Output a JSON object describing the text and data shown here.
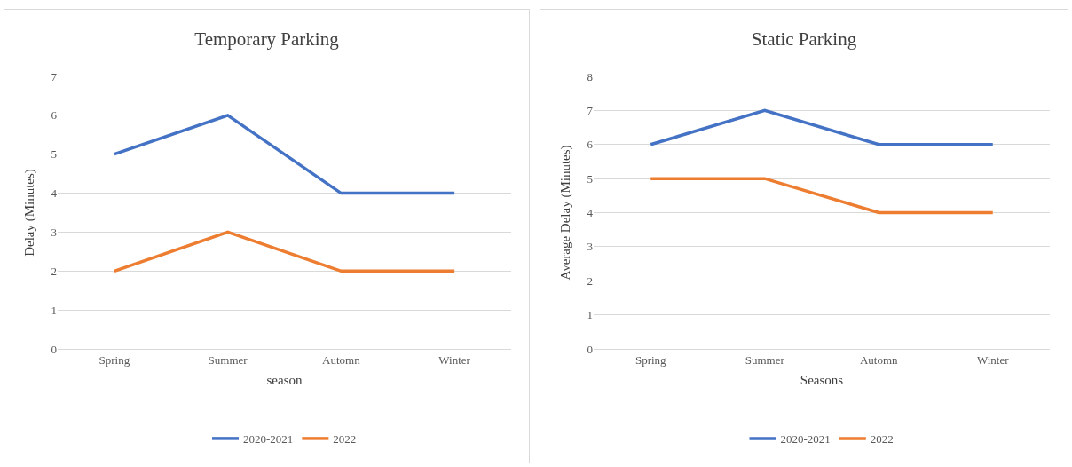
{
  "chart_data": [
    {
      "type": "line",
      "title": "Temporary Parking",
      "xlabel": "season",
      "ylabel": "Delay (Minutes)",
      "categories": [
        "Spring",
        "Summer",
        "Automn",
        "Winter"
      ],
      "series": [
        {
          "name": "2020-2021",
          "color": "#4472c4",
          "values": [
            5,
            6,
            4,
            4
          ]
        },
        {
          "name": "2022",
          "color": "#ed7d31",
          "values": [
            2,
            3,
            2,
            2
          ]
        }
      ],
      "ylim": [
        0,
        7
      ],
      "yticks": [
        0,
        1,
        2,
        3,
        4,
        5,
        6,
        7
      ],
      "grid": "y",
      "legend": "bottom"
    },
    {
      "type": "line",
      "title": "Static Parking",
      "xlabel": "Seasons",
      "ylabel": "Average Delay (Minutes)",
      "categories": [
        "Spring",
        "Summer",
        "Automn",
        "Winter"
      ],
      "series": [
        {
          "name": "2020-2021",
          "color": "#4472c4",
          "values": [
            6,
            7,
            6,
            6
          ]
        },
        {
          "name": "2022",
          "color": "#ed7d31",
          "values": [
            5,
            5,
            4,
            4
          ]
        }
      ],
      "ylim": [
        0,
        8
      ],
      "yticks": [
        0,
        1,
        2,
        3,
        4,
        5,
        6,
        7,
        8
      ],
      "grid": "y",
      "legend": "bottom"
    }
  ]
}
